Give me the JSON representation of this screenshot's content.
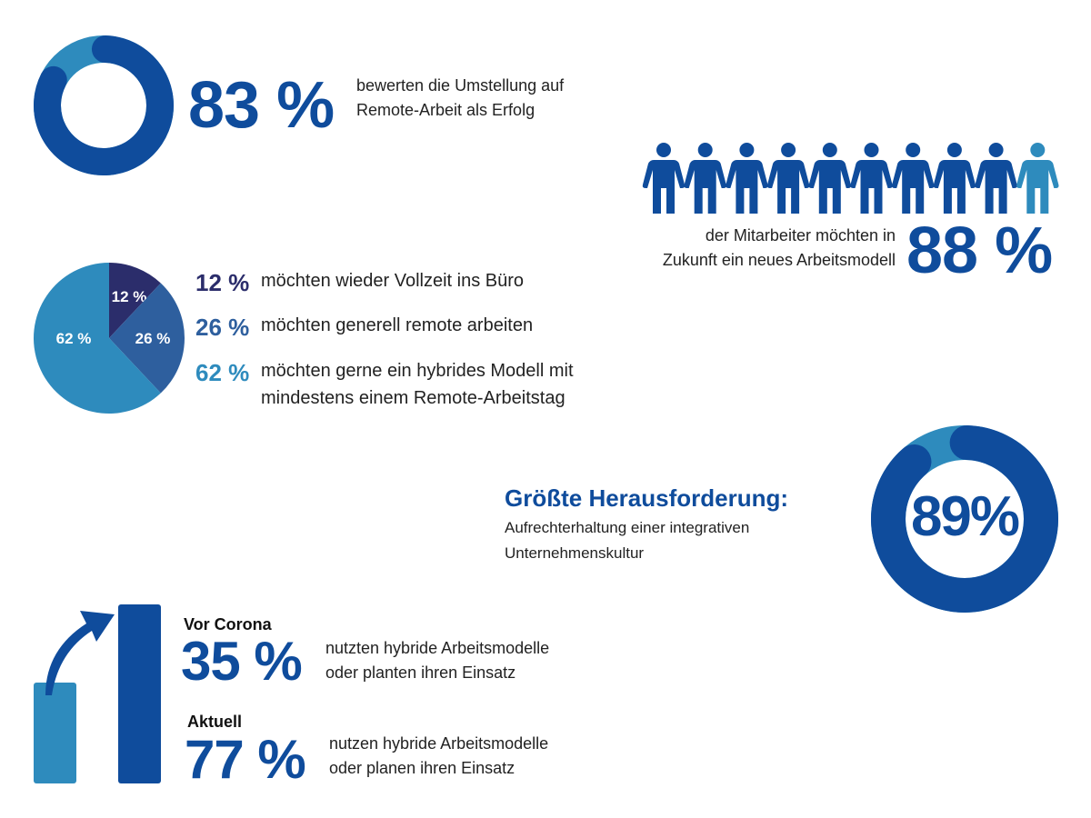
{
  "colors": {
    "dark_blue": "#0f4c9c",
    "light_blue": "#2e8bbd",
    "navy": "#2b2d6b",
    "mid_blue": "#2e5f9e",
    "text": "#222222"
  },
  "block_success": {
    "value": "83 %",
    "line1": "bewerten die Umstellung auf",
    "line2": "Remote-Arbeit als Erfolg"
  },
  "block_people": {
    "value": "88 %",
    "line1": "der Mitarbeiter möchten in",
    "line2": "Zukunft ein neues Arbeitsmodell",
    "icon": "person-icon",
    "filled": 9,
    "total": 10
  },
  "block_pie": {
    "items": [
      {
        "value": "12 %",
        "label": "möchten wieder Vollzeit ins Büro"
      },
      {
        "value": "26 %",
        "label": "möchten generell remote arbeiten"
      },
      {
        "value": "62 %",
        "label": "möchten gerne ein hybrides Modell mit",
        "label2": "mindestens einem Remote-Arbeitstag"
      }
    ]
  },
  "block_challenge": {
    "title": "Größte Herausforderung:",
    "line1": "Aufrechterhaltung einer integrativen",
    "line2": "Unternehmenskultur",
    "value": "89%"
  },
  "block_hybrid": {
    "before": {
      "label": "Vor Corona",
      "value": "35 %",
      "line1": "nutzten hybride Arbeitsmodelle",
      "line2": "oder planten ihren Einsatz"
    },
    "now": {
      "label": "Aktuell",
      "value": "77 %",
      "line1": "nutzen hybride Arbeitsmodelle",
      "line2": "oder planen ihren Einsatz"
    },
    "icon": "arrow-up-right-icon"
  },
  "chart_data": [
    {
      "type": "pie",
      "subtype": "donut",
      "values": [
        83,
        17
      ],
      "colors": [
        "#0f4c9c",
        "#2e8bbd"
      ]
    },
    {
      "type": "pie",
      "categories": [
        "12 %",
        "26 %",
        "62 %"
      ],
      "values": [
        12,
        26,
        62
      ],
      "colors": [
        "#2b2d6b",
        "#2e5f9e",
        "#2e8bbd"
      ]
    },
    {
      "type": "pie",
      "subtype": "donut",
      "values": [
        89,
        11
      ],
      "colors": [
        "#0f4c9c",
        "#2e8bbd"
      ]
    },
    {
      "type": "bar",
      "categories": [
        "Vor Corona",
        "Aktuell"
      ],
      "values": [
        35,
        77
      ],
      "colors": [
        "#2e8bbd",
        "#0f4c9c"
      ]
    }
  ]
}
